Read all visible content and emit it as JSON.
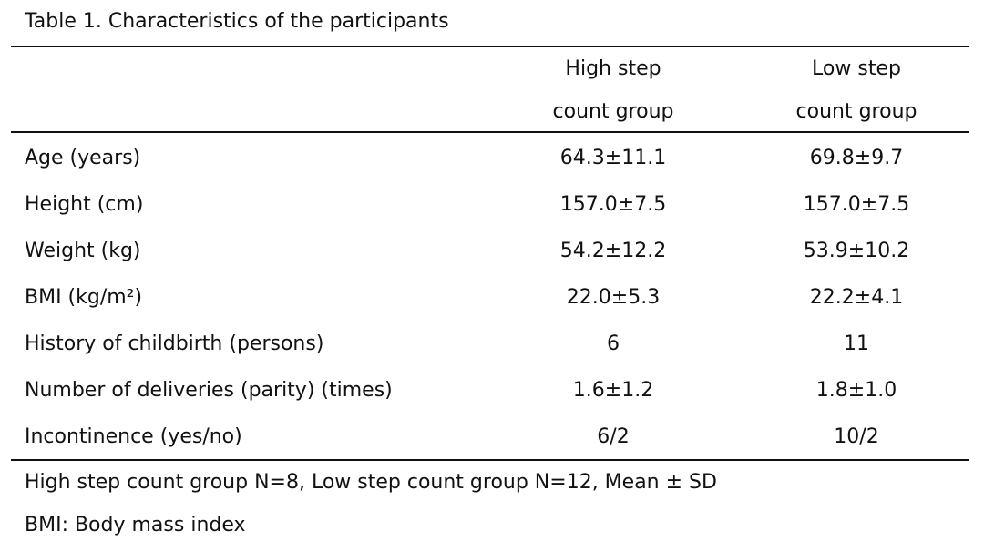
{
  "title": "Table 1. Characteristics of the participants",
  "columns": [
    {
      "line1": "High step",
      "line2": "count group"
    },
    {
      "line1": "Low step",
      "line2": "count group"
    }
  ],
  "rows": [
    {
      "label": "Age (years)",
      "high": "64.3±11.1",
      "low": "69.8±9.7"
    },
    {
      "label": "Height (cm)",
      "high": "157.0±7.5",
      "low": "157.0±7.5"
    },
    {
      "label": "Weight (kg)",
      "high": "54.2±12.2",
      "low": "53.9±10.2"
    },
    {
      "label": "BMI (kg/m²)",
      "high": "22.0±5.3",
      "low": "22.2±4.1"
    },
    {
      "label": "History of childbirth (persons)",
      "high": "6",
      "low": "11"
    },
    {
      "label": "Number of deliveries (parity) (times)",
      "high": "1.6±1.2",
      "low": "1.8±1.0"
    },
    {
      "label": "Incontinence (yes/no)",
      "high": "6/2",
      "low": "10/2"
    }
  ],
  "notes": [
    "High step  count group N=8, Low step count group N=12, Mean ± SD",
    "BMI: Body mass index"
  ]
}
